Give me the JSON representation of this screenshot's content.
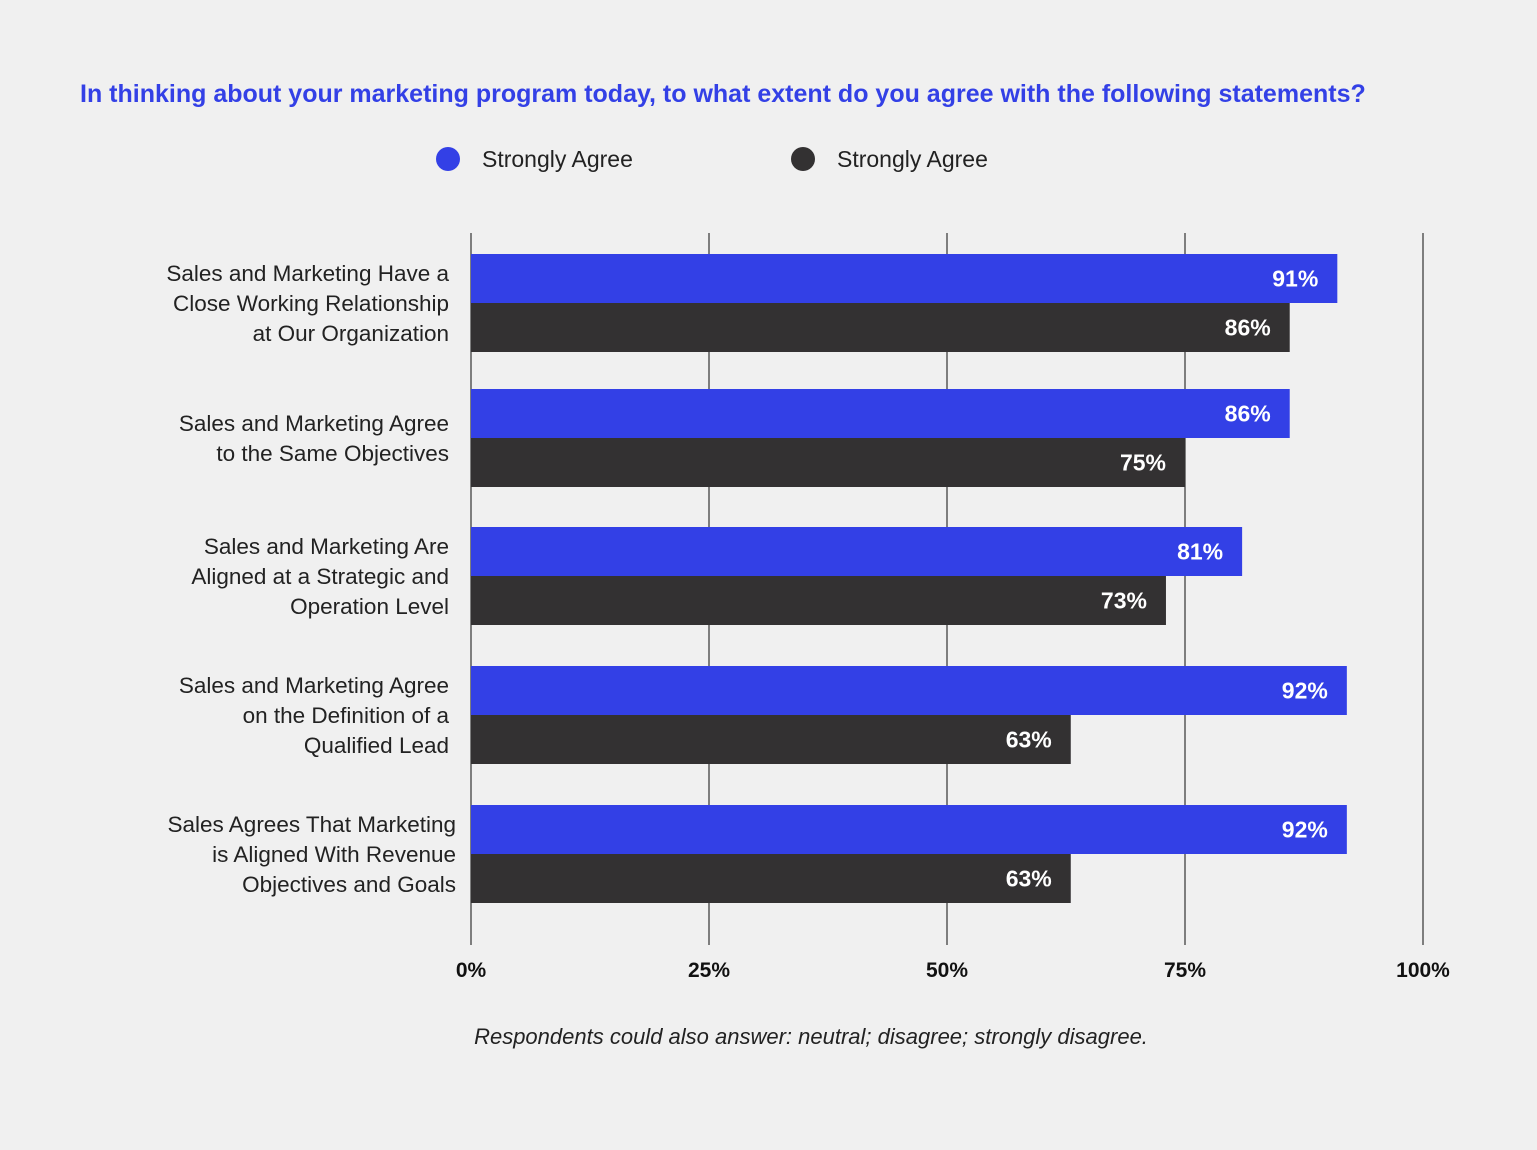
{
  "chart_data": {
    "type": "bar",
    "orientation": "horizontal",
    "title": "In thinking about your marketing program today, to what extent do you agree with the following statements?",
    "categories": [
      [
        "Sales and Marketing Have a",
        "Close Working Relationship",
        "at Our Organization"
      ],
      [
        "Sales and Marketing Agree",
        "to the Same Objectives"
      ],
      [
        "Sales and Marketing Are",
        "Aligned at a Strategic and",
        "Operation Level"
      ],
      [
        "Sales and Marketing Agree",
        "on the Definition of a",
        "Qualified Lead"
      ],
      [
        "Sales Agrees That Marketing",
        "is Aligned With Revenue",
        "Objectives and Goals"
      ]
    ],
    "series": [
      {
        "name": "Strongly Agree",
        "color": "#3340e6",
        "values": [
          91,
          86,
          81,
          92,
          92
        ],
        "labels": [
          "91%",
          "86%",
          "81%",
          "92%",
          "92%"
        ]
      },
      {
        "name": "Strongly Agree",
        "color": "#333132",
        "values": [
          86,
          75,
          73,
          63,
          63
        ],
        "labels": [
          "86%",
          "75%",
          "73%",
          "63%",
          "63%"
        ]
      }
    ],
    "xlim": [
      0,
      100
    ],
    "ticks": [
      0,
      25,
      50,
      75,
      100
    ],
    "tick_labels": [
      "0%",
      "25%",
      "50%",
      "75%",
      "100%"
    ],
    "grid": true,
    "legend_position": "top-center",
    "footnote": "Respondents could also answer: neutral; disagree; strongly disagree."
  },
  "colors": {
    "background": "#f0f0f0",
    "title": "#3340e6",
    "grid": "#333333"
  }
}
